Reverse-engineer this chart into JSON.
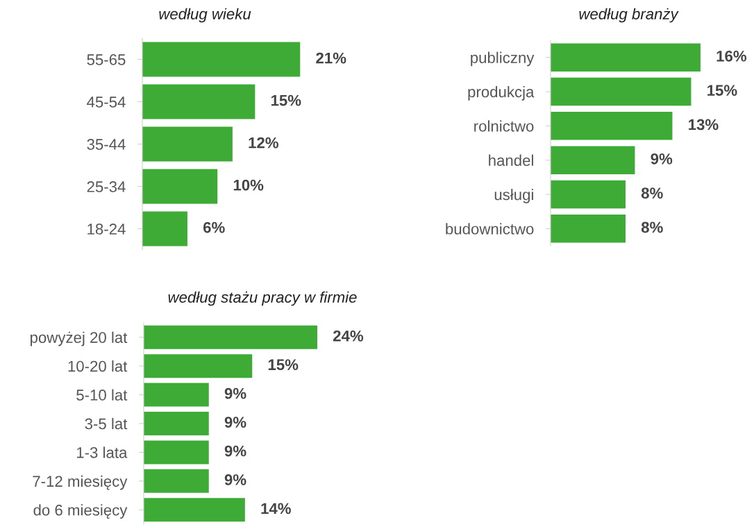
{
  "chart_data": [
    {
      "type": "bar",
      "orientation": "horizontal",
      "title": "według wieku",
      "categories": [
        "55-65",
        "45-54",
        "35-44",
        "25-34",
        "18-24"
      ],
      "values": [
        21,
        15,
        12,
        10,
        6
      ],
      "value_labels": [
        "21%",
        "15%",
        "12%",
        "10%",
        "6%"
      ],
      "color": "#3dab36"
    },
    {
      "type": "bar",
      "orientation": "horizontal",
      "title": "według branży",
      "categories": [
        "publiczny",
        "produkcja",
        "rolnictwo",
        "handel",
        "usługi",
        "budownictwo"
      ],
      "values": [
        16,
        15,
        13,
        9,
        8,
        8
      ],
      "value_labels": [
        "16%",
        "15%",
        "13%",
        "9%",
        "8%",
        "8%"
      ],
      "color": "#3dab36"
    },
    {
      "type": "bar",
      "orientation": "horizontal",
      "title": "według stażu pracy w firmie",
      "categories": [
        "powyżej 20 lat",
        "10-20 lat",
        "5-10 lat",
        "3-5 lat",
        "1-3 lata",
        "7-12 miesięcy",
        "do 6 miesięcy"
      ],
      "values": [
        24,
        15,
        9,
        9,
        9,
        9,
        14
      ],
      "value_labels": [
        "24%",
        "15%",
        "9%",
        "9%",
        "9%",
        "9%",
        "14%"
      ],
      "color": "#3dab36"
    }
  ]
}
